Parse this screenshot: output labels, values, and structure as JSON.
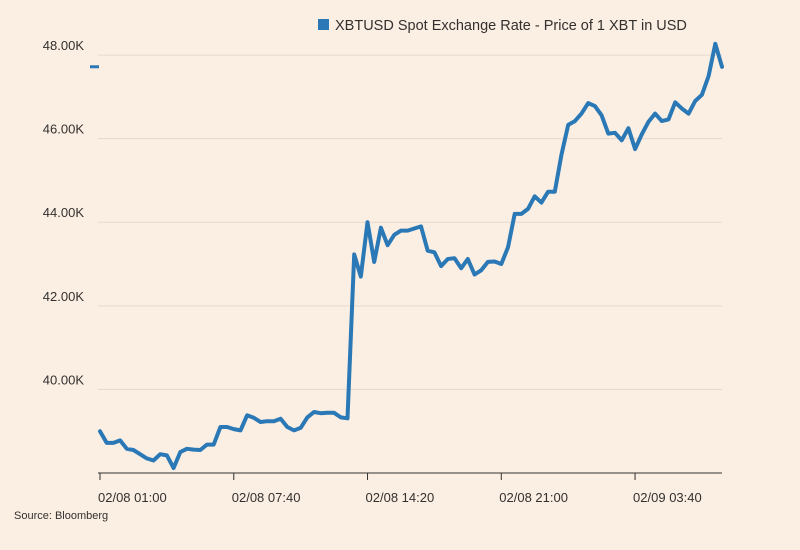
{
  "chart_data": {
    "type": "line",
    "title": "",
    "xlabel": "",
    "ylabel": "",
    "ylim": [
      38000,
      48600
    ],
    "grid": true,
    "legend": "top-right",
    "y_ticks": [
      {
        "value": 40000,
        "label": "40.00K"
      },
      {
        "value": 42000,
        "label": "42.00K"
      },
      {
        "value": 44000,
        "label": "44.00K"
      },
      {
        "value": 46000,
        "label": "46.00K"
      },
      {
        "value": 48000,
        "label": "48.00K"
      }
    ],
    "x_ticks": [
      {
        "index": 0,
        "label": "02/08 01:00"
      },
      {
        "index": 20,
        "label": "02/08 07:40"
      },
      {
        "index": 40,
        "label": "02/08 14:20"
      },
      {
        "index": 60,
        "label": "02/08 21:00"
      },
      {
        "index": 80,
        "label": "02/09 03:40"
      }
    ],
    "last_value_marker": 47720,
    "series": [
      {
        "name": "XBTUSD Spot Exchange Rate - Price of 1 XBT in USD",
        "color": "#2A78B5",
        "values": [
          39000,
          38720,
          38720,
          38780,
          38580,
          38550,
          38450,
          38350,
          38300,
          38450,
          38420,
          38120,
          38500,
          38580,
          38560,
          38550,
          38680,
          38680,
          39100,
          39100,
          39050,
          39020,
          39380,
          39320,
          39220,
          39240,
          39240,
          39300,
          39100,
          39020,
          39080,
          39330,
          39460,
          39430,
          39440,
          39440,
          39330,
          39310,
          43230,
          42700,
          44000,
          43050,
          43870,
          43450,
          43700,
          43800,
          43800,
          43850,
          43900,
          43320,
          43280,
          42950,
          43120,
          43140,
          42900,
          43120,
          42750,
          42850,
          43050,
          43060,
          43000,
          43400,
          44200,
          44200,
          44320,
          44620,
          44470,
          44730,
          44730,
          45620,
          46330,
          46420,
          46600,
          46850,
          46780,
          46560,
          46120,
          46140,
          45960,
          46250,
          45750,
          46100,
          46400,
          46600,
          46420,
          46460,
          46870,
          46720,
          46600,
          46900,
          47050,
          47500,
          48270,
          47720
        ]
      }
    ]
  },
  "source": "Source: Bloomberg"
}
